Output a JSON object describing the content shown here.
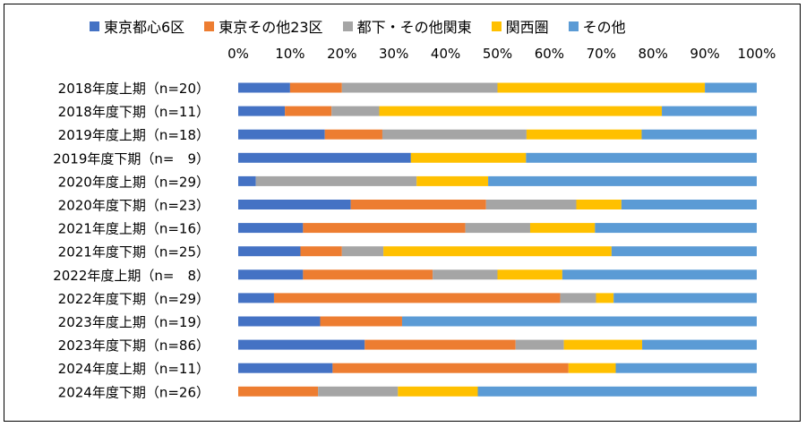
{
  "chart_data": {
    "type": "bar",
    "orientation": "horizontal",
    "stacked": "percent",
    "xlim": [
      0,
      100
    ],
    "x_ticks": [
      "0%",
      "10%",
      "20%",
      "30%",
      "40%",
      "50%",
      "60%",
      "70%",
      "80%",
      "90%",
      "100%"
    ],
    "x_axis_position": "top",
    "legend_position": "top",
    "grid": false,
    "categories": [
      "2018年度上期（n=20）",
      "2018年度下期（n=11）",
      "2019年度上期（n=18）",
      "2019年度下期（n=　9）",
      "2020年度上期（n=29）",
      "2020年度下期（n=23）",
      "2021年度上期（n=16）",
      "2021年度下期（n=25）",
      "2022年度上期（n=　8）",
      "2022年度下期（n=29）",
      "2023年度上期（n=19）",
      "2023年度下期（n=86）",
      "2024年度上期（n=11）",
      "2024年度下期（n=26）"
    ],
    "series": [
      {
        "name": "東京都心6区",
        "color": "#4472C4",
        "values": [
          10,
          9,
          16.7,
          33.3,
          3.4,
          21.7,
          12.5,
          12,
          12.5,
          6.9,
          15.8,
          24.4,
          18.2,
          0
        ]
      },
      {
        "name": "東京その他23区",
        "color": "#ED7D31",
        "values": [
          10,
          9,
          11.1,
          0,
          0,
          26.1,
          31.3,
          8,
          25,
          55.2,
          15.8,
          29.1,
          45.5,
          15.4
        ]
      },
      {
        "name": "都下・その他関東",
        "color": "#A5A5A5",
        "values": [
          30,
          9.2,
          27.8,
          0,
          31,
          17.4,
          12.5,
          8,
          12.5,
          6.9,
          0,
          9.3,
          0,
          15.4
        ]
      },
      {
        "name": "関西圏",
        "color": "#FFC000",
        "values": [
          40,
          54.5,
          22.2,
          22.2,
          13.8,
          8.7,
          12.5,
          44,
          12.5,
          3.4,
          0,
          15.1,
          9.1,
          15.4
        ]
      },
      {
        "name": "その他",
        "color": "#5B9BD5",
        "values": [
          10,
          18.3,
          22.2,
          44.5,
          51.8,
          26.1,
          31.2,
          28,
          37.5,
          27.6,
          68.4,
          22.1,
          27.2,
          53.8
        ]
      }
    ]
  }
}
